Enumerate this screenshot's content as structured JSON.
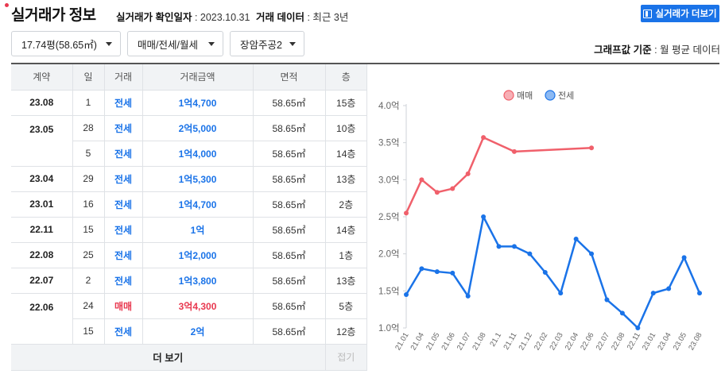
{
  "header": {
    "title": "실거래가 정보",
    "confirm_label": "실거래가 확인일자",
    "confirm_value": " : 2023.10.31",
    "data_label": "거래 데이터",
    "data_value": " : 최근 3년",
    "more_button": "실거래가 더보기"
  },
  "filters": {
    "size": "17.74평(58.65㎡)",
    "deal_type": "매매/전세/월세",
    "complex": "장암주공2"
  },
  "graph_basis": {
    "label": "그래프값 기준",
    "value": " : 월 평균 데이터"
  },
  "table": {
    "headers": [
      "계약",
      "일",
      "거래",
      "거래금액",
      "면적",
      "층"
    ],
    "rows": [
      {
        "contract": "23.08",
        "day": "1",
        "kind": "전세",
        "price": "1억4,700",
        "area": "58.65",
        "floor": "15층",
        "color": "#1a73e8"
      },
      {
        "contract": "23.05",
        "day": "28",
        "kind": "전세",
        "price": "2억5,000",
        "area": "58.65",
        "floor": "10층",
        "color": "#1a73e8"
      },
      {
        "contract": "",
        "day": "5",
        "kind": "전세",
        "price": "1억4,000",
        "area": "58.65",
        "floor": "14층",
        "color": "#1a73e8"
      },
      {
        "contract": "23.04",
        "day": "29",
        "kind": "전세",
        "price": "1억5,300",
        "area": "58.65",
        "floor": "13층",
        "color": "#1a73e8"
      },
      {
        "contract": "23.01",
        "day": "16",
        "kind": "전세",
        "price": "1억4,700",
        "area": "58.65",
        "floor": "2층",
        "color": "#1a73e8"
      },
      {
        "contract": "22.11",
        "day": "15",
        "kind": "전세",
        "price": "1억",
        "area": "58.65",
        "floor": "14층",
        "color": "#1a73e8"
      },
      {
        "contract": "22.08",
        "day": "25",
        "kind": "전세",
        "price": "1억2,000",
        "area": "58.65",
        "floor": "1층",
        "color": "#1a73e8"
      },
      {
        "contract": "22.07",
        "day": "2",
        "kind": "전세",
        "price": "1억3,800",
        "area": "58.65",
        "floor": "13층",
        "color": "#1a73e8"
      },
      {
        "contract": "22.06",
        "day": "24",
        "kind": "매매",
        "price": "3억4,300",
        "area": "58.65",
        "floor": "5층",
        "color": "#e8384f"
      },
      {
        "contract": "",
        "day": "15",
        "kind": "전세",
        "price": "2억",
        "area": "58.65",
        "floor": "12층",
        "color": "#1a73e8"
      }
    ],
    "area_unit": "㎡",
    "more_label": "더 보기",
    "fold_label": "접기"
  },
  "chart_data": {
    "type": "line",
    "categories": [
      "21.01",
      "21.04",
      "21.05",
      "21.06",
      "21.07",
      "21.08",
      "21.1",
      "21.11",
      "21.12",
      "22.02",
      "22.03",
      "22.04",
      "22.06",
      "22.07",
      "22.08",
      "22.11",
      "23.01",
      "23.04",
      "23.05",
      "23.08"
    ],
    "y_tick_labels": [
      "1.0억",
      "1.5억",
      "2.0억",
      "2.5억",
      "3.0억",
      "3.5억",
      "4.0억"
    ],
    "ylim": [
      1.0,
      4.0
    ],
    "y_unit": "억",
    "legend_position": "top-center",
    "grid": false,
    "series": [
      {
        "name": "매매",
        "color": "#f0606b",
        "values": [
          2.55,
          3.0,
          2.83,
          2.88,
          3.08,
          3.57,
          null,
          3.38,
          null,
          null,
          null,
          null,
          3.43,
          null,
          null,
          null,
          null,
          null,
          null,
          null
        ]
      },
      {
        "name": "전세",
        "color": "#1a73e8",
        "values": [
          1.45,
          1.8,
          1.76,
          1.74,
          1.43,
          2.5,
          2.1,
          2.1,
          2.0,
          1.75,
          1.47,
          2.2,
          2.0,
          1.38,
          1.2,
          1.0,
          1.47,
          1.53,
          1.95,
          1.47
        ]
      }
    ]
  }
}
